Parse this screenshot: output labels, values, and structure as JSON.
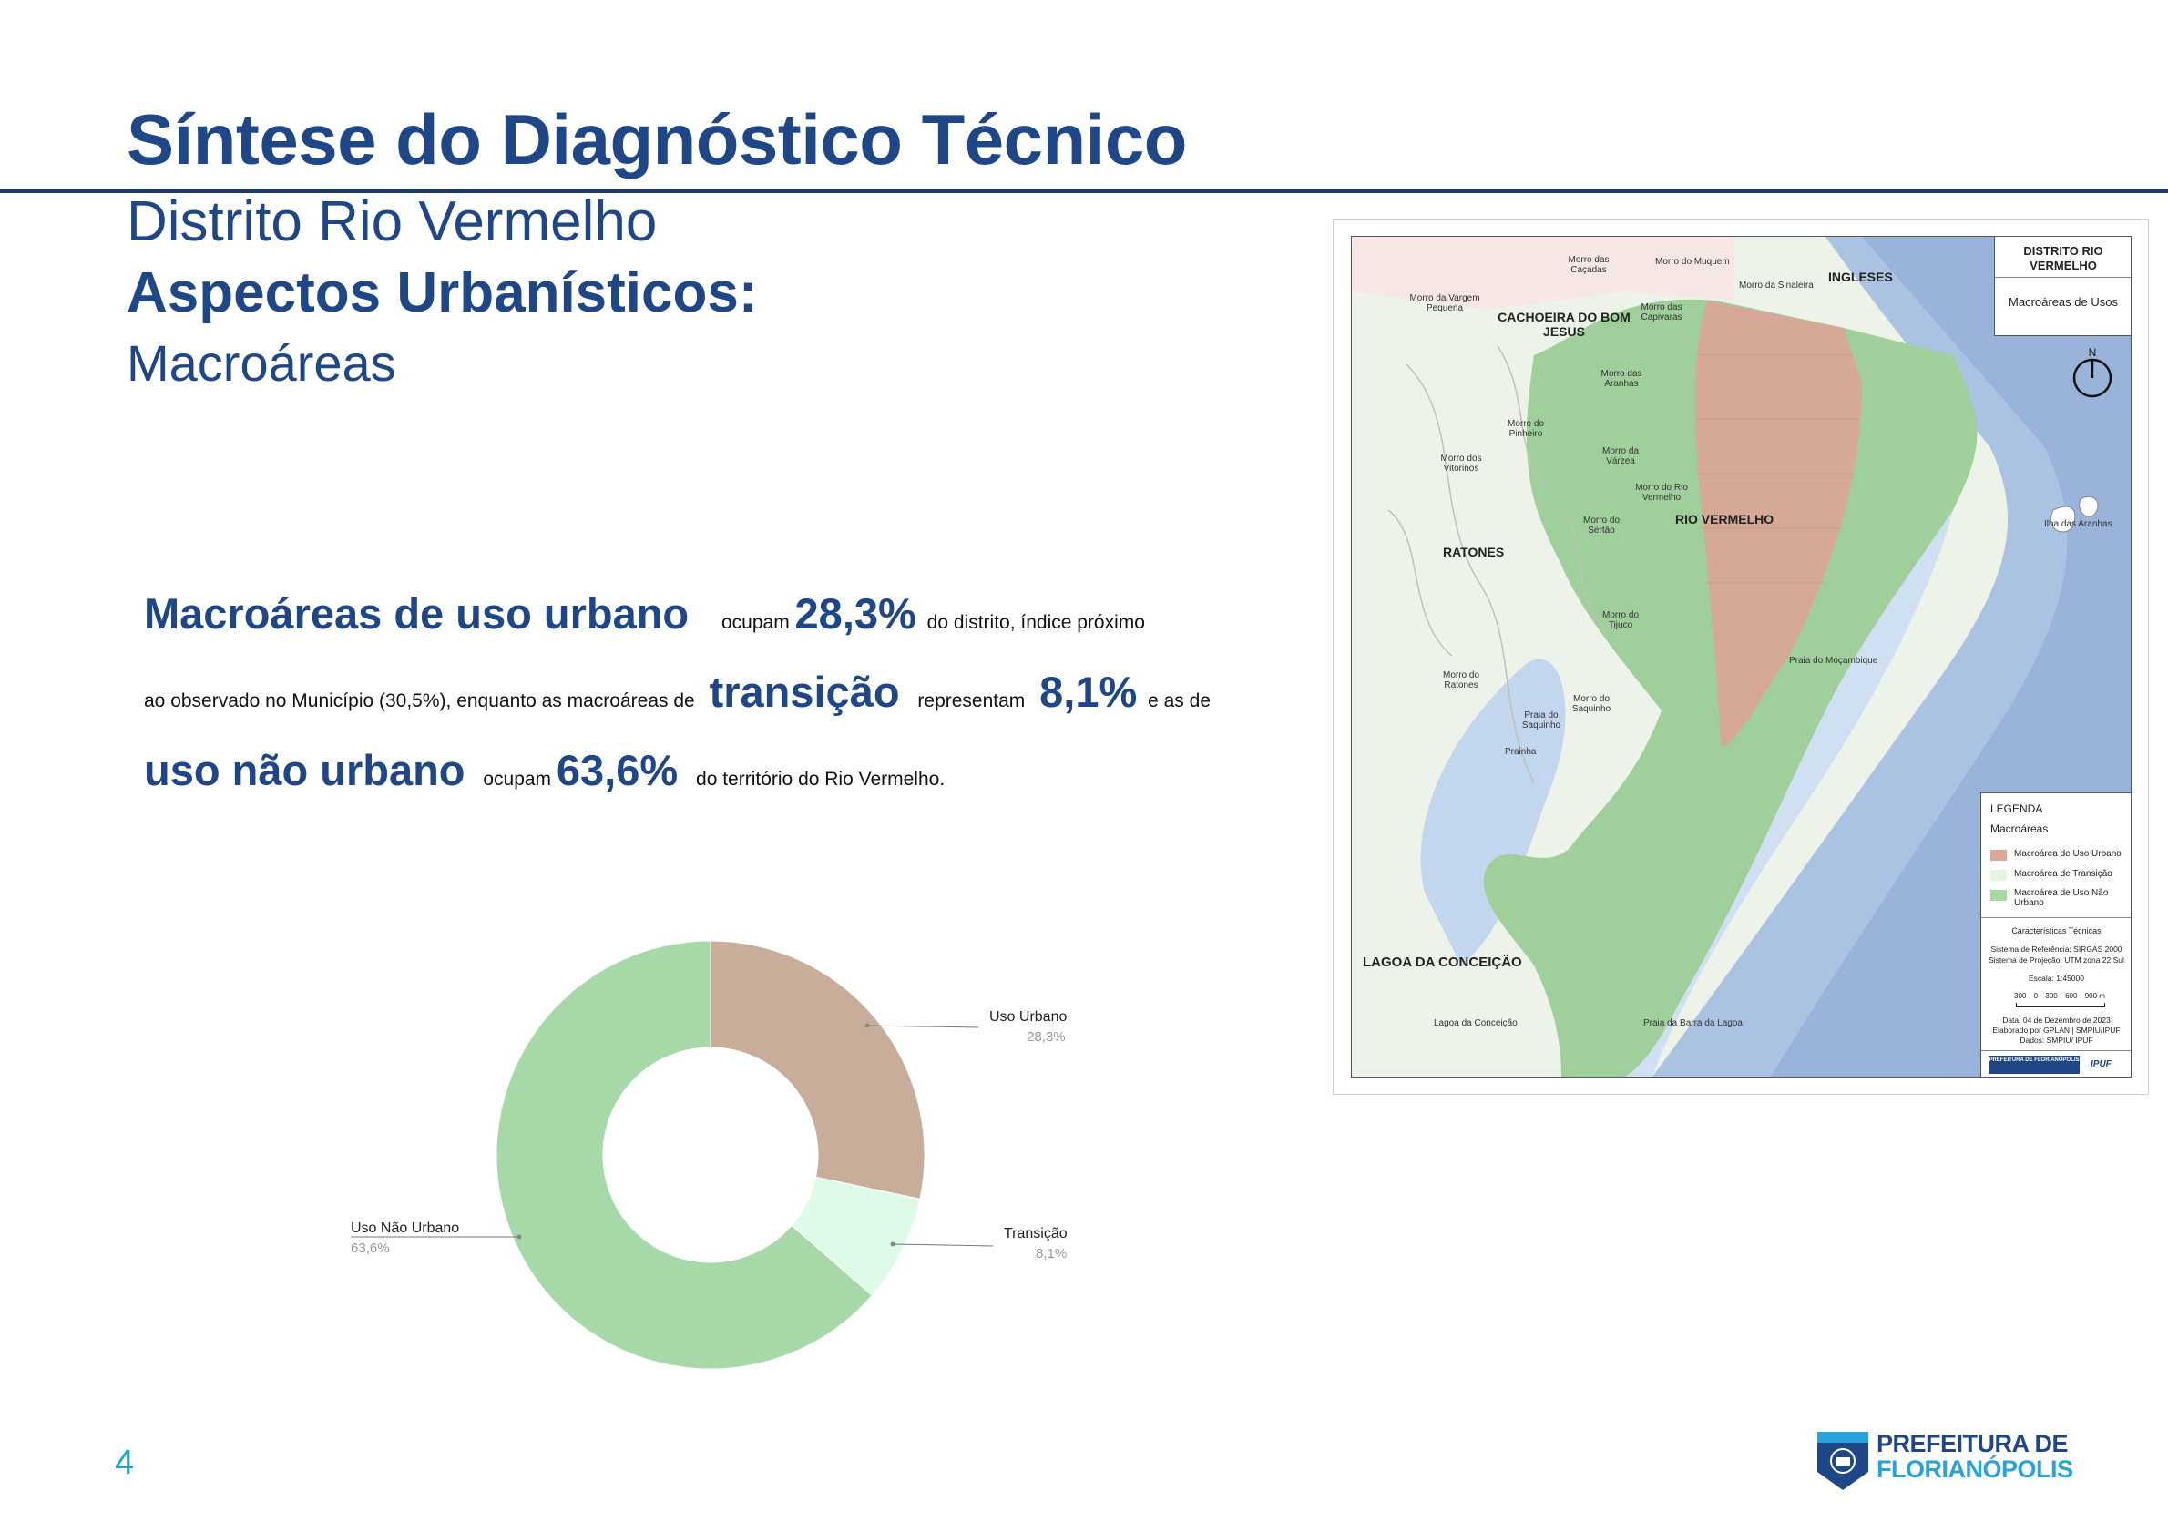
{
  "header": {
    "title": "Síntese do Diagnóstico Técnico",
    "subtitle": "Distrito Rio Vermelho",
    "heading": "Aspectos Urbanísticos:",
    "subheading": "Macroáreas"
  },
  "summary": {
    "line1": {
      "bold": "Macroáreas de uso urbano",
      "verb": "ocupam",
      "value": "28,3%",
      "rest": "do distrito, índice próximo"
    },
    "line2": {
      "lead": "ao observado no Município (30,5%), enquanto as macroáreas de",
      "bold": "transição",
      "verb": "representam",
      "value": "8,1%",
      "rest": "e as de"
    },
    "line3": {
      "bold": "uso não urbano",
      "verb": "ocupam",
      "value": "63,6%",
      "rest": "do território do Rio Vermelho."
    }
  },
  "chart_data": {
    "type": "pie",
    "donut": true,
    "categories": [
      "Uso Urbano",
      "Transição",
      "Uso Não Urbano"
    ],
    "values": [
      28.3,
      8.1,
      63.6
    ],
    "value_labels": [
      "28,3%",
      "8,1%",
      "63,6%"
    ],
    "colors": [
      "#c9ad9b",
      "#ddfbe6",
      "#a7d9a8"
    ]
  },
  "map": {
    "title": "DISTRITO RIO VERMELHO",
    "subtitle": "Macroáreas de Usos",
    "north_label": "N",
    "place_labels": [
      "INGLESES",
      "CACHOEIRA DO BOM JESUS",
      "RIO VERMELHO",
      "RATONES",
      "LAGOA DA CONCEIÇÃO",
      "Morro das Caçadas",
      "Morro do Muquem",
      "Morro da Sinaleira",
      "Morro da Vargem Pequena",
      "Morro das Capivaras",
      "Morro das Aranhas",
      "Morro do Pinheiro",
      "Morro dos Vitorinos",
      "Morro da Várzea",
      "Morro do Rio Vermelho",
      "Morro do Sertão",
      "Morro do Tijuco",
      "Morro do Ratones",
      "Morro do Saquinho",
      "Praia do Saquinho",
      "Prainha",
      "Praia do Moçambique",
      "Ilha das Aranhas",
      "Lagoa da Conceição",
      "Praia da Barra da Lagoa"
    ],
    "legend": {
      "title": "LEGENDA",
      "group": "Macroáreas",
      "items": [
        "Macroárea de Uso Urbano",
        "Macroárea de Transição",
        "Macroárea de Uso Não Urbano"
      ],
      "colors": [
        "#d8a999",
        "#e4f6e2",
        "#a8d9a0"
      ],
      "tech_title": "Características Técnicas",
      "tech_lines": [
        "Sistema de Referência: SIRGAS 2000",
        "Sistema de Projeção: UTM zona 22 Sul",
        "Escala: 1:45000"
      ],
      "scale_labels": [
        "300",
        "0",
        "300",
        "600",
        "900 m"
      ],
      "credits": [
        "Data: 04 de Dezembro de 2023",
        "Elaborado por GPLAN | SMPIU/IPUF",
        "Dados: SMPIU/ IPUF"
      ],
      "logo1": "PREFEITURA DE FLORIANÓPOLIS",
      "logo2": "IPUF"
    }
  },
  "footer": {
    "page_number": "4",
    "logo_line1": "PREFEITURA DE",
    "logo_line2": "FLORIANÓPOLIS"
  }
}
